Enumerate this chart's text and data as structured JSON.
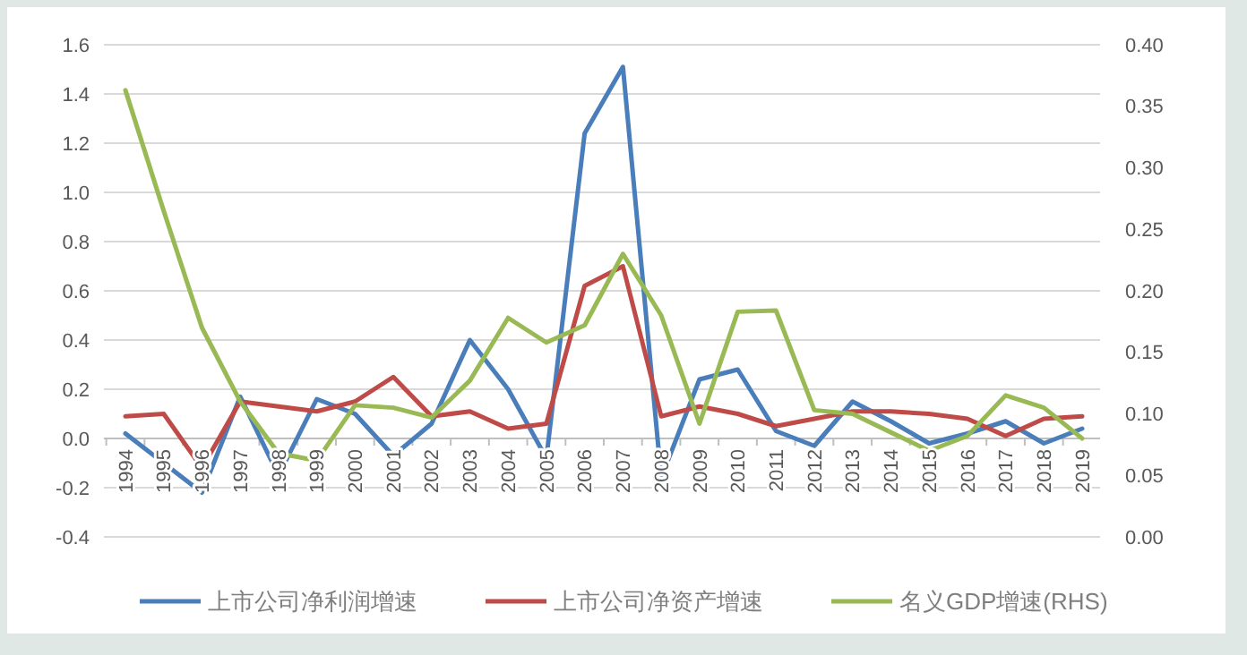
{
  "chart_data": {
    "type": "line",
    "categories": [
      "1994",
      "1995",
      "1996",
      "1997",
      "1998",
      "1999",
      "2000",
      "2001",
      "2002",
      "2003",
      "2004",
      "2005",
      "2006",
      "2007",
      "2008",
      "2009",
      "2010",
      "2011",
      "2012",
      "2013",
      "2014",
      "2015",
      "2016",
      "2017",
      "2018",
      "2019"
    ],
    "series": [
      {
        "name": "上市公司净利润增速",
        "color": "#4a7ebb",
        "values": [
          0.02,
          -0.1,
          -0.22,
          0.17,
          -0.15,
          0.16,
          0.1,
          -0.07,
          0.06,
          0.4,
          0.2,
          -0.08,
          1.24,
          1.51,
          -0.16,
          0.24,
          0.28,
          0.03,
          -0.03,
          0.15,
          0.07,
          -0.02,
          0.02,
          0.07,
          -0.02,
          0.04
        ]
      },
      {
        "name": "上市公司净资产增速",
        "color": "#be4b48",
        "values": [
          0.09,
          0.1,
          -0.12,
          0.15,
          0.13,
          0.11,
          0.15,
          0.25,
          0.09,
          0.11,
          0.04,
          0.06,
          0.62,
          0.7,
          0.09,
          0.13,
          0.1,
          0.05,
          0.08,
          0.11,
          0.11,
          0.1,
          0.08,
          0.01,
          0.08,
          0.09
        ]
      },
      {
        "name": "名义GDP增速(RHS)",
        "color": "#98b954",
        "axis": "y2",
        "values": [
          0.363,
          0.265,
          0.17,
          0.11,
          0.068,
          0.062,
          0.107,
          0.105,
          0.097,
          0.127,
          0.178,
          0.158,
          0.172,
          0.23,
          0.18,
          0.092,
          0.183,
          0.184,
          0.103,
          0.1,
          0.085,
          0.07,
          0.082,
          0.115,
          0.105,
          0.08
        ]
      }
    ],
    "ylim": [
      -0.4,
      1.6
    ],
    "yticks": [
      {
        "value": -0.4,
        "label": "-0.4"
      },
      {
        "value": -0.2,
        "label": "-0.2"
      },
      {
        "value": 0,
        "label": "0.0"
      },
      {
        "value": 0.2,
        "label": "0.2"
      },
      {
        "value": 0.4,
        "label": "0.4"
      },
      {
        "value": 0.6,
        "label": "0.6"
      },
      {
        "value": 0.8,
        "label": "0.8"
      },
      {
        "value": 1,
        "label": "1.0"
      },
      {
        "value": 1.2,
        "label": "1.2"
      },
      {
        "value": 1.4,
        "label": "1.4"
      },
      {
        "value": 1.6,
        "label": "1.6"
      }
    ],
    "y2lim": [
      0,
      0.4
    ],
    "y2ticks": [
      {
        "value": 0,
        "label": "0.00"
      },
      {
        "value": 0.05,
        "label": "0.05"
      },
      {
        "value": 0.1,
        "label": "0.10"
      },
      {
        "value": 0.15,
        "label": "0.15"
      },
      {
        "value": 0.2,
        "label": "0.20"
      },
      {
        "value": 0.25,
        "label": "0.25"
      },
      {
        "value": 0.3,
        "label": "0.30"
      },
      {
        "value": 0.35,
        "label": "0.35"
      },
      {
        "value": 0.4,
        "label": "0.40"
      }
    ],
    "grid": "y",
    "legend": "bottom",
    "marker": "none",
    "line_style": "solid"
  }
}
